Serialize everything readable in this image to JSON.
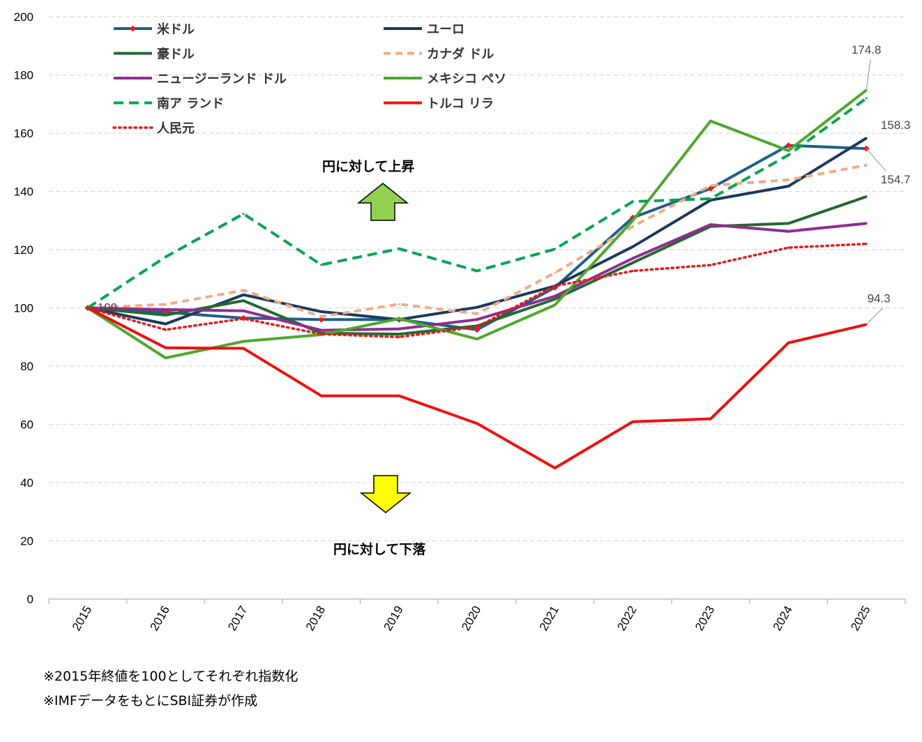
{
  "chart_data": {
    "type": "line",
    "x": [
      "2015",
      "2016",
      "2017",
      "2018",
      "2019",
      "2020",
      "2021",
      "2022",
      "2023",
      "2024",
      "2025"
    ],
    "ylim": [
      0,
      200
    ],
    "yticks": [
      0,
      20,
      40,
      60,
      80,
      100,
      120,
      140,
      160,
      180,
      200
    ],
    "grid": true,
    "legend": "top-left",
    "series": [
      {
        "name": "米ドル",
        "color": "#1F5F86",
        "style": "solid-marker",
        "values": [
          100,
          98.5,
          96.5,
          96,
          96,
          92.5,
          107,
          131,
          141,
          155.8,
          154.7
        ]
      },
      {
        "name": "ユーロ",
        "color": "#1B3A5C",
        "style": "solid",
        "values": [
          100,
          94.5,
          104.5,
          98.7,
          96,
          100.2,
          107.5,
          121,
          137,
          141.8,
          158.3
        ]
      },
      {
        "name": "豪ドル",
        "color": "#22692F",
        "style": "solid",
        "values": [
          100,
          97.5,
          102.5,
          91.3,
          91,
          93.8,
          103,
          115.5,
          128,
          129,
          138.2
        ]
      },
      {
        "name": "カナダ ドル",
        "color": "#F2AA84",
        "style": "dash",
        "values": [
          100,
          101.2,
          106,
          97,
          101.3,
          98,
          112,
          128,
          142,
          144,
          149
        ]
      },
      {
        "name": "ニュージーランド ドル",
        "color": "#8E2F8E",
        "style": "solid",
        "values": [
          100,
          99.4,
          99,
          92.3,
          92.8,
          96,
          104,
          117,
          128.6,
          126.3,
          129
        ]
      },
      {
        "name": "メキシコ ペソ",
        "color": "#4EA72E",
        "style": "solid",
        "values": [
          100,
          82.8,
          88.5,
          90.8,
          96.3,
          89.3,
          101,
          130,
          164.2,
          154,
          174.8
        ]
      },
      {
        "name": "南ア ランド",
        "color": "#00A550",
        "style": "dash-long",
        "values": [
          100,
          117.5,
          132.3,
          114.8,
          120.3,
          112.7,
          120.2,
          136.5,
          137.5,
          152.5,
          172
        ]
      },
      {
        "name": "トルコ リラ",
        "color": "#F01010",
        "style": "solid",
        "values": [
          100,
          86.3,
          86.1,
          69.8,
          69.8,
          60.3,
          45,
          60.9,
          61.9,
          88,
          94.3
        ]
      },
      {
        "name": "人民元",
        "color": "#E21B1B",
        "style": "dot",
        "values": [
          100,
          92.5,
          96.3,
          91,
          90,
          93.5,
          107.5,
          112.7,
          114.7,
          120.7,
          122
        ]
      }
    ],
    "data_labels": [
      {
        "text": "174.8",
        "series": "メキシコ ペソ",
        "x": "2025",
        "y": 174.8
      },
      {
        "text": "158.3",
        "series": "ユーロ",
        "x": "2025",
        "y": 158.3
      },
      {
        "text": "154.7",
        "series": "米ドル",
        "x": "2025",
        "y": 154.7
      },
      {
        "text": "94.3",
        "series": "トルコ リラ",
        "x": "2025",
        "y": 94.3
      },
      {
        "text": "100",
        "series": "米ドル",
        "x": "2015",
        "y": 100
      }
    ],
    "annotations": {
      "up": "円に対して上昇",
      "down": "円に対して下落"
    }
  },
  "notes": {
    "note1": "※2015年終値を100としてそれぞれ指数化",
    "note2": "※IMFデータをもとにSBI証券が作成"
  },
  "colors": {
    "up_arrow": "#92D050",
    "down_arrow": "#FFFF00",
    "gridline": "#D9D9D9",
    "axis": "#BFBFBF"
  }
}
